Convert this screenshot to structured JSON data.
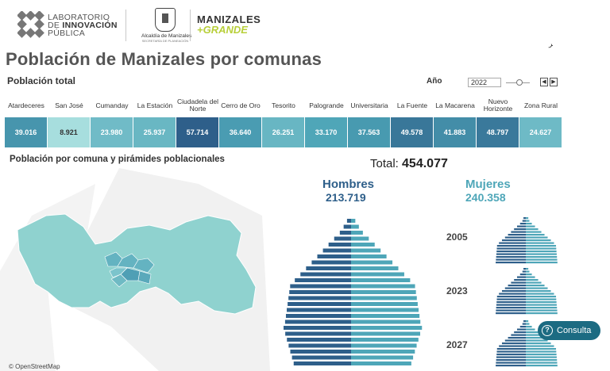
{
  "header": {
    "lab_line1": "LABORATORIO",
    "lab_line2_pre": "DE ",
    "lab_line2_bold": "INNOVACIÓN",
    "lab_line3": "PÚBLICA",
    "alcaldia_name": "Alcaldía de Manizales",
    "alcaldia_sub": "SECRETARÍA DE PLANEACIÓN",
    "brand_line1": "MANIZALES",
    "brand_line2": "+GRANDE",
    "corner_mark": "ﺮ"
  },
  "title": "Población de Manizales por comunas",
  "population_total_label": "Población total",
  "year_filter": {
    "label": "Año",
    "value": "2022"
  },
  "communes": [
    {
      "name": "Atardeceres",
      "value": "39.016",
      "pop": 39016
    },
    {
      "name": "San José",
      "value": "8.921",
      "pop": 8921
    },
    {
      "name": "Cumanday",
      "value": "23.980",
      "pop": 23980
    },
    {
      "name": "La Estación",
      "value": "25.937",
      "pop": 25937
    },
    {
      "name": "Ciudadela del Norte",
      "value": "57.714",
      "pop": 57714
    },
    {
      "name": "Cerro de Oro",
      "value": "36.640",
      "pop": 36640
    },
    {
      "name": "Tesorito",
      "value": "26.251",
      "pop": 26251
    },
    {
      "name": "Palogrande",
      "value": "33.170",
      "pop": 33170
    },
    {
      "name": "Universitaria",
      "value": "37.563",
      "pop": 37563
    },
    {
      "name": "La Fuente",
      "value": "49.578",
      "pop": 49578
    },
    {
      "name": "La Macarena",
      "value": "41.883",
      "pop": 41883
    },
    {
      "name": "Nuevo Horizonte",
      "value": "48.797",
      "pop": 48797
    },
    {
      "name": "Zona Rural",
      "value": "24.627",
      "pop": 24627
    }
  ],
  "map_section_label": "Población por comuna y pirámides poblacionales",
  "total": {
    "label": "Total:",
    "value": "454.077"
  },
  "men": {
    "label": "Hombres",
    "value": "213.719",
    "color": "#2e5f8a"
  },
  "women": {
    "label": "Mujeres",
    "value": "240.358",
    "color": "#4ea6b8"
  },
  "pyramid_years": [
    "2005",
    "2023",
    "2027"
  ],
  "map_attribution": "© OpenStreetMap",
  "consulta_button": "Consulta",
  "colors": {
    "dark_blue": "#2e5f8a",
    "teal": "#4ea6b8",
    "light_teal": "#a7dede",
    "map_fill": "#86cfcc",
    "consulta": "#1c6b82"
  }
}
